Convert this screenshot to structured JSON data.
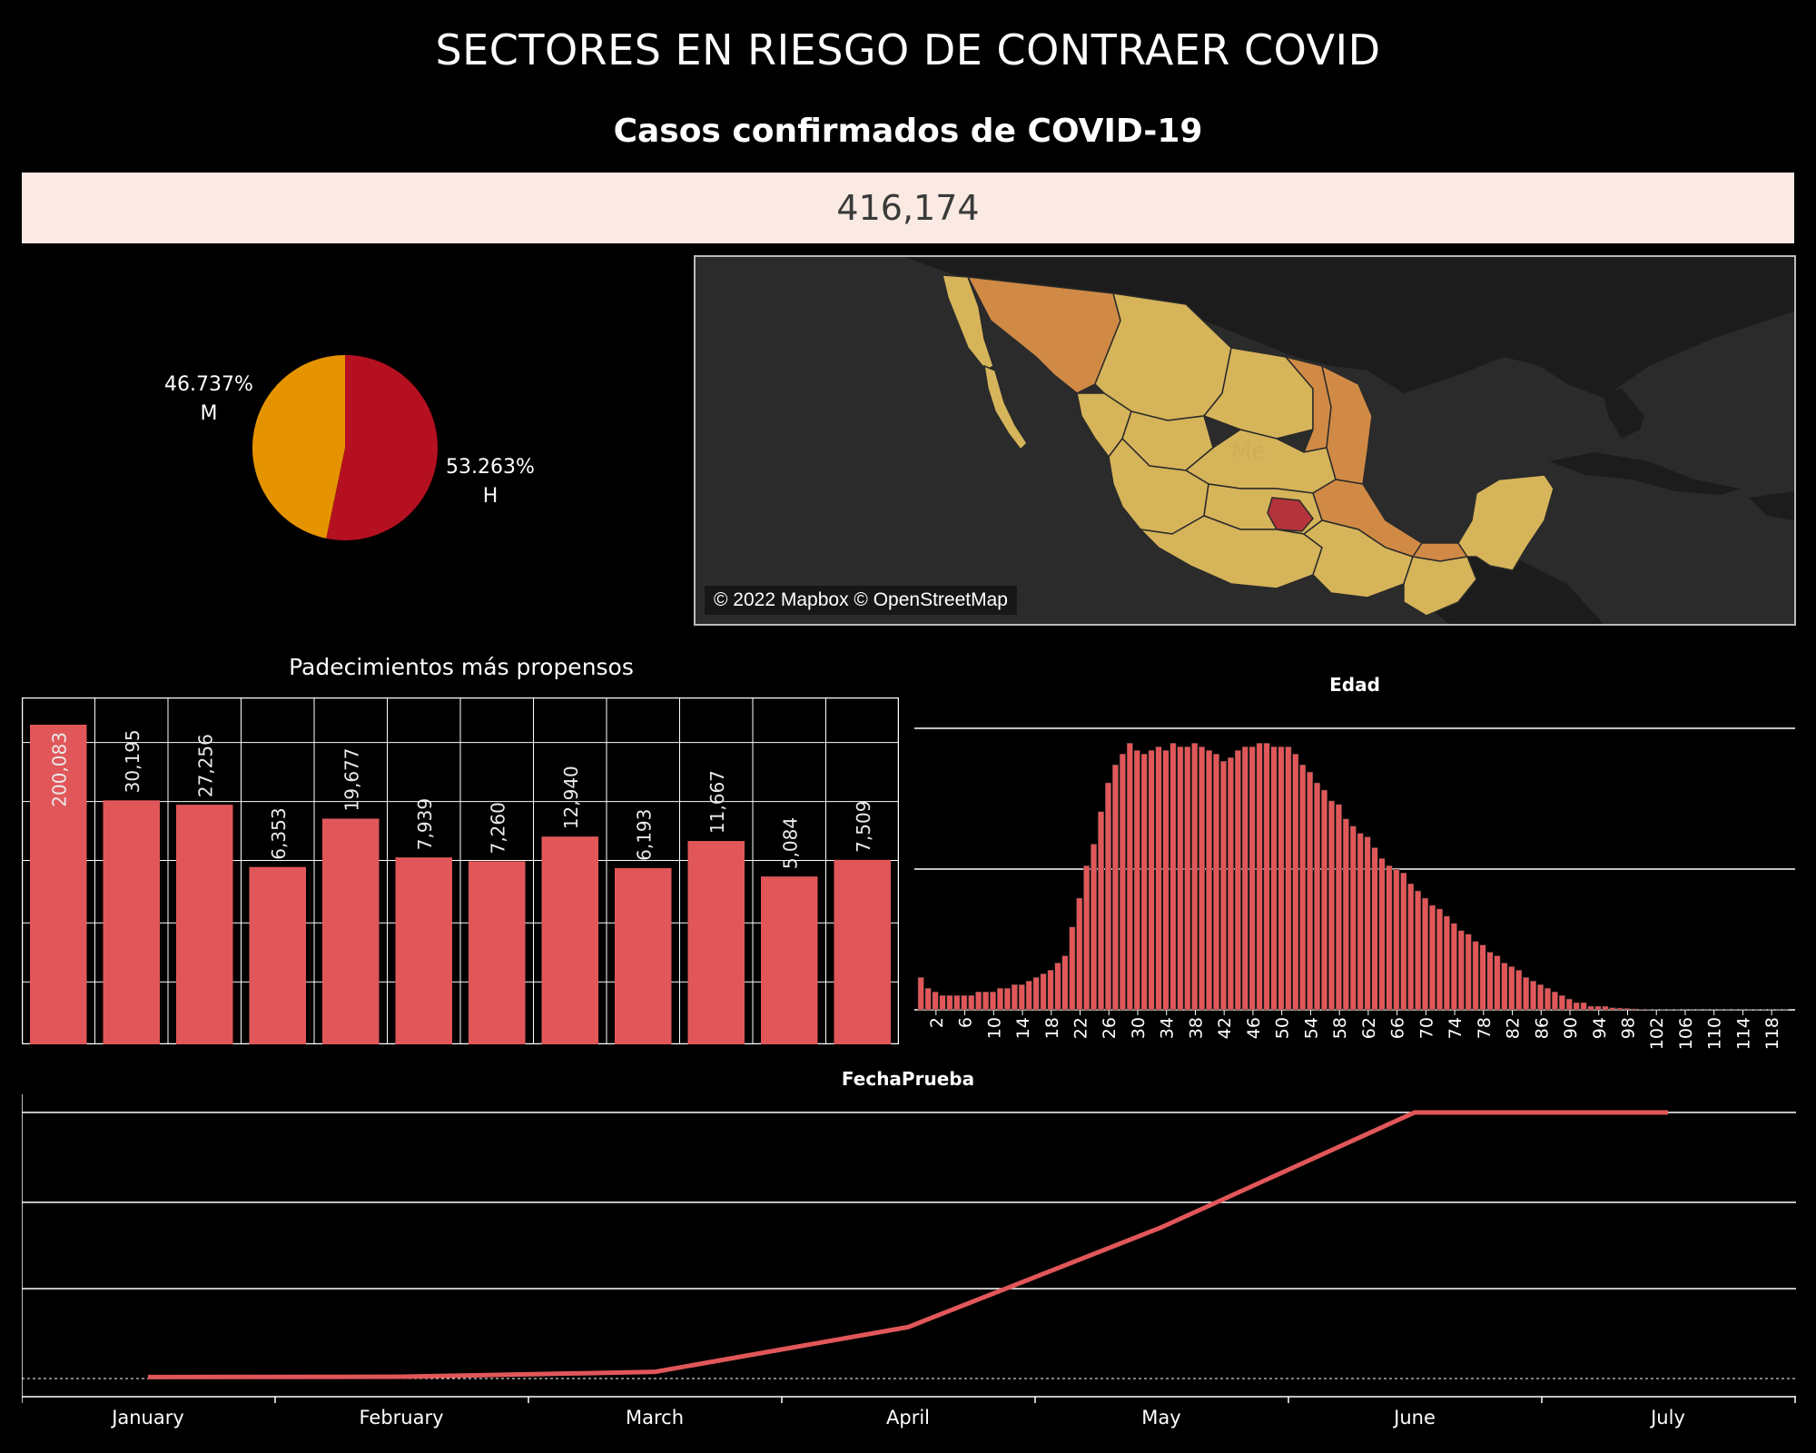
{
  "title": "SECTORES EN RIESGO DE CONTRAER COVID",
  "kpi": {
    "label": "Casos confirmados de COVID-19",
    "value": "416,174"
  },
  "colors": {
    "bar": "#e15759",
    "female": "#e59400",
    "male": "#b5101f",
    "kpi_bg": "#faeae3"
  },
  "map": {
    "credit": "© 2022 Mapbox © OpenStreetMap",
    "watermark": "Mé",
    "colors": {
      "low": "#d6b45a",
      "mid": "#d08a45",
      "high": "#b3343a"
    }
  },
  "chart_data": [
    {
      "type": "pie",
      "slices": [
        {
          "label": "M",
          "pct_label": "46.737%",
          "value": 46.737,
          "color": "#e59400"
        },
        {
          "label": "H",
          "pct_label": "53.263%",
          "value": 53.263,
          "color": "#b5101f"
        }
      ]
    },
    {
      "type": "bar",
      "title": "Padecimientos más propensos",
      "values": [
        200083,
        30195,
        27256,
        6353,
        19677,
        7939,
        7260,
        12940,
        6193,
        11667,
        5084,
        7509
      ],
      "labels": [
        "200,083",
        "30,195",
        "27,256",
        "6,353",
        "19,677",
        "7,939",
        "7,260",
        "12,940",
        "6,193",
        "11,667",
        "5,084",
        "7,509"
      ]
    },
    {
      "type": "bar",
      "title": "Edad",
      "x_start": 0,
      "tick_labels": [
        "2",
        "6",
        "10",
        "14",
        "18",
        "22",
        "26",
        "30",
        "34",
        "38",
        "42",
        "46",
        "50",
        "54",
        "58",
        "62",
        "66",
        "70",
        "74",
        "78",
        "82",
        "86",
        "90",
        "94",
        "98",
        "102",
        "106",
        "110",
        "114",
        "118"
      ],
      "values": [
        9,
        6,
        5,
        4,
        4,
        4,
        4,
        4,
        5,
        5,
        5,
        6,
        6,
        7,
        7,
        8,
        9,
        10,
        11,
        13,
        15,
        23,
        31,
        40,
        46,
        55,
        63,
        68,
        71,
        74,
        72,
        71,
        72,
        73,
        72,
        74,
        73,
        73,
        74,
        73,
        72,
        71,
        69,
        70,
        72,
        73,
        73,
        74,
        74,
        73,
        73,
        73,
        71,
        68,
        66,
        63,
        61,
        58,
        57,
        53,
        51,
        49,
        48,
        45,
        42,
        40,
        39,
        38,
        35,
        33,
        31,
        29,
        28,
        26,
        24,
        22,
        21,
        19,
        18,
        16,
        15,
        13,
        12,
        11,
        9,
        8,
        7,
        6,
        5,
        4,
        3,
        2,
        2,
        1,
        1,
        1,
        0.6,
        0.5,
        0.4,
        0.3,
        0.2,
        0.2,
        0.1,
        0.1,
        0.1,
        0.1,
        0.05,
        0.05,
        0.05,
        0.05,
        0.05,
        0.05,
        0.05,
        0.05,
        0.05,
        0.05,
        0.05,
        0.05,
        0.05,
        0.05,
        0.05
      ],
      "ylim": [
        0,
        100
      ]
    },
    {
      "type": "line",
      "title": "FechaPrueba",
      "categories": [
        "January",
        "February",
        "March",
        "April",
        "May",
        "June",
        "July"
      ],
      "values": [
        0.5,
        0.6,
        2.2,
        17,
        50,
        88,
        88
      ],
      "ylim": [
        0,
        88
      ]
    }
  ]
}
